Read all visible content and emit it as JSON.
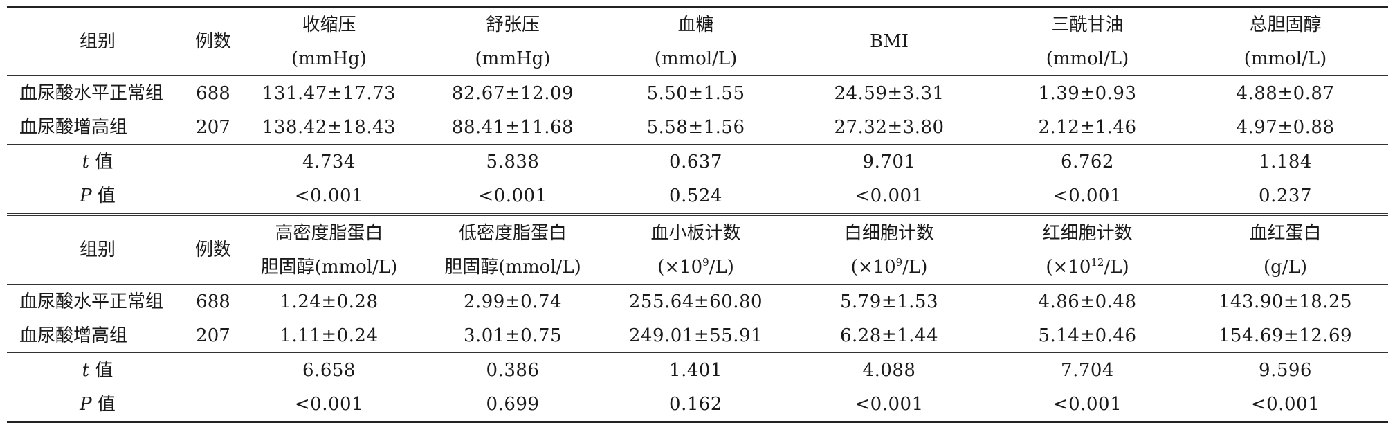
{
  "table": {
    "sections": [
      {
        "header": {
          "group": "组别",
          "count": "例数",
          "columns": [
            {
              "name": "收缩压",
              "unit": "(mmHg)"
            },
            {
              "name": "舒张压",
              "unit": "(mmHg)"
            },
            {
              "name": "血糖",
              "unit": "(mmol/L)"
            },
            {
              "name": "BMI",
              "unit": ""
            },
            {
              "name": "三酰甘油",
              "unit": "(mmol/L)"
            },
            {
              "name": "总胆固醇",
              "unit": "(mmol/L)"
            }
          ]
        },
        "rows": [
          {
            "group": "血尿酸水平正常组",
            "count": "688",
            "values": [
              "131.47±17.73",
              "82.67±12.09",
              "5.50±1.55",
              "24.59±3.31",
              "1.39±0.93",
              "4.88±0.87"
            ]
          },
          {
            "group": "血尿酸增高组",
            "count": "207",
            "values": [
              "138.42±18.43",
              "88.41±11.68",
              "5.58±1.56",
              "27.32±3.80",
              "2.12±1.46",
              "4.97±0.88"
            ]
          }
        ],
        "stats": [
          {
            "symbol": "t",
            "label": " 值",
            "values": [
              "4.734",
              "5.838",
              "0.637",
              "9.701",
              "6.762",
              "1.184"
            ]
          },
          {
            "symbol": "P",
            "label": " 值",
            "values": [
              "<0.001",
              "<0.001",
              "0.524",
              "<0.001",
              "<0.001",
              "0.237"
            ]
          }
        ]
      },
      {
        "header": {
          "group": "组别",
          "count": "例数",
          "columns": [
            {
              "name": "高密度脂蛋白",
              "unit": "胆固醇(mmol/L)"
            },
            {
              "name": "低密度脂蛋白",
              "unit": "胆固醇(mmol/L)"
            },
            {
              "name": "血小板计数",
              "unit_pre": "(×10",
              "unit_sup": "9",
              "unit_post": "/L)"
            },
            {
              "name": "白细胞计数",
              "unit_pre": "(×10",
              "unit_sup": "9",
              "unit_post": "/L)"
            },
            {
              "name": "红细胞计数",
              "unit_pre": "(×10",
              "unit_sup": "12",
              "unit_post": "/L)"
            },
            {
              "name": "血红蛋白",
              "unit": "(g/L)"
            }
          ]
        },
        "rows": [
          {
            "group": "血尿酸水平正常组",
            "count": "688",
            "values": [
              "1.24±0.28",
              "2.99±0.74",
              "255.64±60.80",
              "5.79±1.53",
              "4.86±0.48",
              "143.90±18.25"
            ]
          },
          {
            "group": "血尿酸增高组",
            "count": "207",
            "values": [
              "1.11±0.24",
              "3.01±0.75",
              "249.01±55.91",
              "6.28±1.44",
              "5.14±0.46",
              "154.69±12.69"
            ]
          }
        ],
        "stats": [
          {
            "symbol": "t",
            "label": " 值",
            "values": [
              "6.658",
              "0.386",
              "1.401",
              "4.088",
              "7.704",
              "9.596"
            ]
          },
          {
            "symbol": "P",
            "label": " 值",
            "values": [
              "<0.001",
              "0.699",
              "0.162",
              "<0.001",
              "<0.001",
              "<0.001"
            ]
          }
        ]
      }
    ]
  }
}
